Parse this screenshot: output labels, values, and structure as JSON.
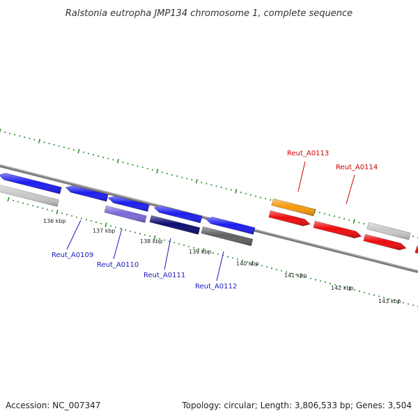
{
  "title": "Ralstonia eutropha JMP134 chromosome 1, complete sequence",
  "footer": {
    "accession": "Accession: NC_007347",
    "topology": "Topology: circular; Length: 3,806,533 bp; Genes: 3,504"
  },
  "kbp_labels": [
    "136 kbp",
    "137 kbp",
    "138 kbp",
    "139 kbp",
    "140 kbp",
    "141 kbp",
    "142 kbp",
    "143 kbp"
  ],
  "gene_labels": [
    "Reut_A0109",
    "Reut_A0110",
    "Reut_A0111",
    "Reut_A0112",
    "Reut_A0113",
    "Reut_A0114"
  ],
  "colors": {
    "tick": "#2e8b2e",
    "backbone": "#777777",
    "label_blue": "#1a1ab8",
    "label_red": "#cc0000",
    "blue": "#1c1cf0",
    "light_purple": "#7b68d9",
    "navy": "#0c0c70",
    "gray": "#606060",
    "light_gray": "#c8c8c8",
    "orange": "#f59a0a",
    "red": "#ee0b0b"
  }
}
